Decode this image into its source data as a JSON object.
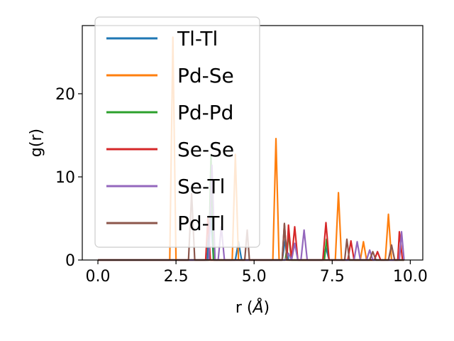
{
  "chart_data": {
    "type": "line",
    "xlabel_text": "r (",
    "xlabel_unit": "Å",
    "xlabel_close": ")",
    "ylabel": "g(r)",
    "xlim": [
      -0.5,
      10.4
    ],
    "ylim": [
      0,
      28.2
    ],
    "xticks": [
      0.0,
      2.5,
      5.0,
      7.5,
      10.0
    ],
    "xtick_labels": [
      "0.0",
      "2.5",
      "5.0",
      "7.5",
      "10.0"
    ],
    "yticks": [
      0,
      10,
      20
    ],
    "ytick_labels": [
      "0",
      "10",
      "20"
    ],
    "grid": false,
    "legend_position": "upper-left",
    "series": [
      {
        "name": "Tl-Tl",
        "color": "#1f77b4",
        "points": [
          [
            0,
            0
          ],
          [
            3.5,
            0
          ],
          [
            3.6,
            6.5
          ],
          [
            3.7,
            0
          ],
          [
            4.4,
            0
          ],
          [
            4.5,
            2.2
          ],
          [
            4.6,
            0
          ],
          [
            5.9,
            0
          ],
          [
            6.0,
            2.5
          ],
          [
            6.1,
            0
          ],
          [
            7.2,
            0
          ],
          [
            7.3,
            1.5
          ],
          [
            7.4,
            0
          ],
          [
            9.8,
            0
          ]
        ]
      },
      {
        "name": "Pd-Se",
        "color": "#ff7f0e",
        "points": [
          [
            0,
            0
          ],
          [
            2.3,
            0
          ],
          [
            2.4,
            26.8
          ],
          [
            2.5,
            0
          ],
          [
            4.3,
            0
          ],
          [
            4.4,
            12.7
          ],
          [
            4.5,
            0
          ],
          [
            5.6,
            0
          ],
          [
            5.7,
            14.6
          ],
          [
            5.8,
            0
          ],
          [
            7.6,
            0
          ],
          [
            7.7,
            8.1
          ],
          [
            7.8,
            0
          ],
          [
            8.4,
            0
          ],
          [
            8.5,
            2.2
          ],
          [
            8.6,
            0
          ],
          [
            9.2,
            0
          ],
          [
            9.3,
            5.5
          ],
          [
            9.4,
            0
          ],
          [
            9.8,
            0
          ]
        ]
      },
      {
        "name": "Pd-Pd",
        "color": "#2ca02c",
        "points": [
          [
            0,
            0
          ],
          [
            3.55,
            0
          ],
          [
            3.62,
            12.5
          ],
          [
            3.7,
            0
          ],
          [
            6.0,
            0
          ],
          [
            6.1,
            3.0
          ],
          [
            6.2,
            0
          ],
          [
            7.25,
            0
          ],
          [
            7.32,
            2.5
          ],
          [
            7.4,
            0
          ],
          [
            9.8,
            0
          ]
        ]
      },
      {
        "name": "Se-Se",
        "color": "#d62728",
        "points": [
          [
            0,
            0
          ],
          [
            3.45,
            0
          ],
          [
            3.52,
            5.0
          ],
          [
            3.6,
            0
          ],
          [
            5.9,
            0
          ],
          [
            5.97,
            4.3
          ],
          [
            6.05,
            0
          ],
          [
            6.1,
            4.2
          ],
          [
            6.2,
            0
          ],
          [
            6.3,
            4.0
          ],
          [
            6.4,
            0
          ],
          [
            7.2,
            0
          ],
          [
            7.3,
            4.5
          ],
          [
            7.4,
            0
          ],
          [
            8.0,
            0
          ],
          [
            8.1,
            2.3
          ],
          [
            8.2,
            0
          ],
          [
            8.85,
            0
          ],
          [
            8.95,
            1.0
          ],
          [
            9.05,
            0
          ],
          [
            9.6,
            0
          ],
          [
            9.65,
            3.4
          ],
          [
            9.75,
            0
          ],
          [
            9.8,
            0
          ]
        ]
      },
      {
        "name": "Se-Tl",
        "color": "#9467bd",
        "points": [
          [
            0,
            0
          ],
          [
            3.55,
            0
          ],
          [
            3.65,
            11.4
          ],
          [
            3.75,
            0
          ],
          [
            3.85,
            0
          ],
          [
            3.95,
            4.0
          ],
          [
            4.05,
            0
          ],
          [
            6.0,
            0
          ],
          [
            6.1,
            0.8
          ],
          [
            6.2,
            0
          ],
          [
            6.3,
            2.0
          ],
          [
            6.4,
            0
          ],
          [
            6.5,
            0
          ],
          [
            6.6,
            3.6
          ],
          [
            6.7,
            0
          ],
          [
            8.2,
            0
          ],
          [
            8.3,
            2.2
          ],
          [
            8.4,
            0
          ],
          [
            8.6,
            0
          ],
          [
            8.7,
            1.2
          ],
          [
            8.8,
            0
          ],
          [
            9.65,
            0
          ],
          [
            9.72,
            3.4
          ],
          [
            9.8,
            0
          ]
        ]
      },
      {
        "name": "Pd-Tl",
        "color": "#8c564b",
        "points": [
          [
            0,
            0
          ],
          [
            2.9,
            0
          ],
          [
            3.0,
            8.0
          ],
          [
            3.1,
            0
          ],
          [
            4.7,
            0
          ],
          [
            4.78,
            3.6
          ],
          [
            4.85,
            0
          ],
          [
            5.9,
            0
          ],
          [
            5.97,
            4.4
          ],
          [
            6.05,
            0
          ],
          [
            7.9,
            0
          ],
          [
            7.97,
            2.5
          ],
          [
            8.05,
            0
          ],
          [
            8.7,
            0
          ],
          [
            8.8,
            1.0
          ],
          [
            8.9,
            0
          ],
          [
            9.3,
            0
          ],
          [
            9.4,
            1.8
          ],
          [
            9.5,
            0
          ],
          [
            9.8,
            0
          ]
        ]
      }
    ]
  }
}
